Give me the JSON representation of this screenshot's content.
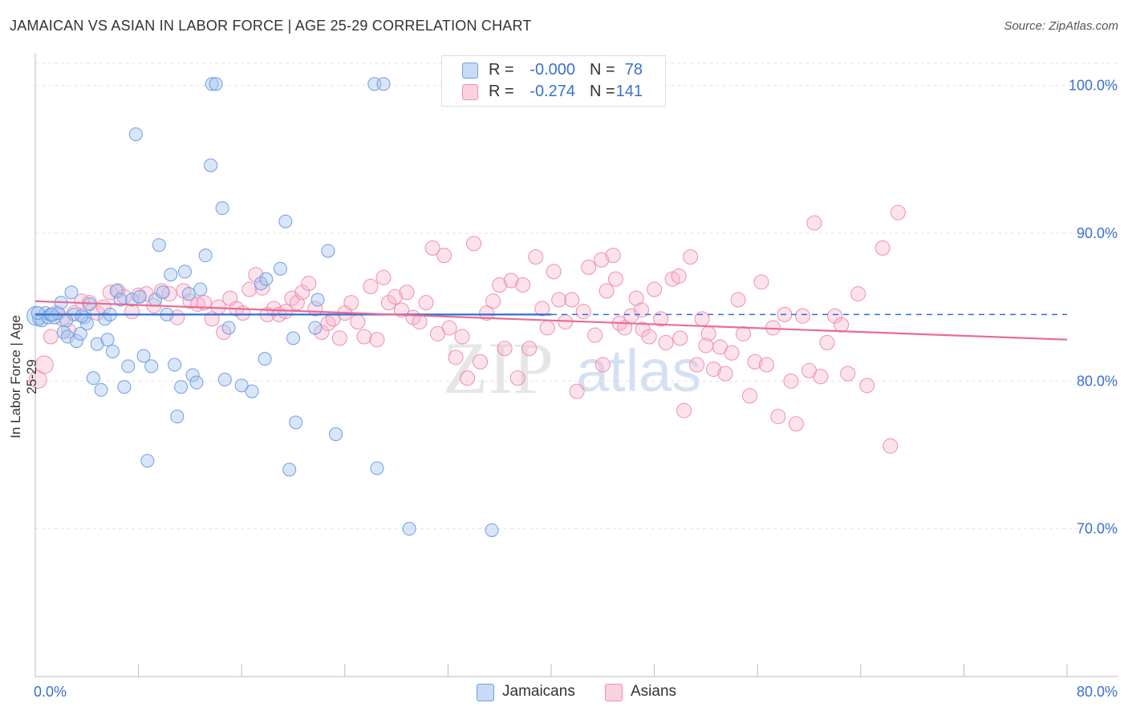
{
  "title": "JAMAICAN VS ASIAN IN LABOR FORCE | AGE 25-29 CORRELATION CHART",
  "source": "Source: ZipAtlas.com",
  "watermark": {
    "zip": "ZIP",
    "atlas": "atlas"
  },
  "colors": {
    "jamaicans": "#6e9ee6",
    "asians": "#ee8fb0",
    "jam_line": "#2f6fd0",
    "asi_line": "#e86b98",
    "accent": "#3b6fd1"
  },
  "legend": {
    "jamaicans": {
      "r_label": "R =",
      "r_value": "-0.000",
      "n_label": "N =",
      "n_value": "78"
    },
    "asians": {
      "r_label": "R =",
      "r_value": "-0.274",
      "n_label": "N =",
      "n_value": "141"
    }
  },
  "bottom_legend": {
    "jamaicans": "Jamaicans",
    "asians": "Asians"
  },
  "chart_data": {
    "type": "scatter",
    "xlabel": "",
    "ylabel": "In Labor Force | Age 25-29",
    "xlim": [
      0,
      80
    ],
    "ylim": [
      60.0,
      101.5
    ],
    "x_tick_labels": [
      "0.0%",
      "80.0%"
    ],
    "y_ticks": [
      70,
      80,
      90,
      100
    ],
    "y_tick_labels": [
      "70.0%",
      "80.0%",
      "90.0%",
      "100.0%"
    ],
    "grid": true,
    "series": [
      {
        "name": "Jamaicans",
        "trend": {
          "x": [
            0,
            40
          ],
          "y": [
            84.5,
            84.5
          ],
          "dashed_extension_to": 80
        },
        "points": [
          [
            0.1,
            84.4
          ],
          [
            0.3,
            84.2
          ],
          [
            0.5,
            84.1
          ],
          [
            0.8,
            84.6
          ],
          [
            1.0,
            84.3
          ],
          [
            1.2,
            84.5
          ],
          [
            1.5,
            84.3
          ],
          [
            1.8,
            84.6
          ],
          [
            2.0,
            85.3
          ],
          [
            2.2,
            83.3
          ],
          [
            2.5,
            83.0
          ],
          [
            2.8,
            86.0
          ],
          [
            3.0,
            84.5
          ],
          [
            3.2,
            82.7
          ],
          [
            3.5,
            83.2
          ],
          [
            3.8,
            84.3
          ],
          [
            4.0,
            83.9
          ],
          [
            4.2,
            85.2
          ],
          [
            4.5,
            80.2
          ],
          [
            4.8,
            82.5
          ],
          [
            5.1,
            79.4
          ],
          [
            5.4,
            84.2
          ],
          [
            5.6,
            82.8
          ],
          [
            5.8,
            84.5
          ],
          [
            6.0,
            82.0
          ],
          [
            6.3,
            86.1
          ],
          [
            6.6,
            85.5
          ],
          [
            6.9,
            79.6
          ],
          [
            7.2,
            81.0
          ],
          [
            7.5,
            85.5
          ],
          [
            7.8,
            96.7
          ],
          [
            8.1,
            85.7
          ],
          [
            8.4,
            81.7
          ],
          [
            8.7,
            74.6
          ],
          [
            9.0,
            81.0
          ],
          [
            9.3,
            85.5
          ],
          [
            9.6,
            89.2
          ],
          [
            9.9,
            86.0
          ],
          [
            10.2,
            84.5
          ],
          [
            10.5,
            87.2
          ],
          [
            10.8,
            81.1
          ],
          [
            11.0,
            77.6
          ],
          [
            11.3,
            79.6
          ],
          [
            11.6,
            87.4
          ],
          [
            11.9,
            85.9
          ],
          [
            12.2,
            80.4
          ],
          [
            12.5,
            79.9
          ],
          [
            12.8,
            86.2
          ],
          [
            13.2,
            88.5
          ],
          [
            13.6,
            94.6
          ],
          [
            13.7,
            100.1
          ],
          [
            14.0,
            100.1
          ],
          [
            14.5,
            91.7
          ],
          [
            14.7,
            80.1
          ],
          [
            15.0,
            83.6
          ],
          [
            16.0,
            79.7
          ],
          [
            16.8,
            79.3
          ],
          [
            17.5,
            86.6
          ],
          [
            17.8,
            81.5
          ],
          [
            17.9,
            86.9
          ],
          [
            19.0,
            87.6
          ],
          [
            19.4,
            90.8
          ],
          [
            19.7,
            74.0
          ],
          [
            20.0,
            82.9
          ],
          [
            20.2,
            77.2
          ],
          [
            21.7,
            83.6
          ],
          [
            21.9,
            85.5
          ],
          [
            22.7,
            88.8
          ],
          [
            23.3,
            76.4
          ],
          [
            26.3,
            100.1
          ],
          [
            27.0,
            100.1
          ],
          [
            26.5,
            74.1
          ],
          [
            29.0,
            70.0
          ],
          [
            35.4,
            69.9
          ],
          [
            0.2,
            84.6
          ],
          [
            1.3,
            84.5
          ],
          [
            2.4,
            84.1
          ],
          [
            3.6,
            84.4
          ]
        ]
      },
      {
        "name": "Asians",
        "trend": {
          "x": [
            0,
            80
          ],
          "y": [
            85.4,
            82.8
          ]
        },
        "points": [
          [
            0.2,
            80.1
          ],
          [
            0.7,
            81.1
          ],
          [
            1.2,
            83.0
          ],
          [
            1.6,
            84.6
          ],
          [
            2.1,
            84.2
          ],
          [
            2.6,
            83.4
          ],
          [
            3.0,
            84.6
          ],
          [
            3.6,
            85.4
          ],
          [
            4.2,
            85.3
          ],
          [
            4.8,
            84.6
          ],
          [
            5.3,
            85.0
          ],
          [
            5.8,
            86.0
          ],
          [
            6.4,
            86.1
          ],
          [
            6.9,
            85.7
          ],
          [
            7.5,
            84.7
          ],
          [
            8.0,
            85.8
          ],
          [
            8.6,
            85.9
          ],
          [
            9.2,
            85.1
          ],
          [
            9.8,
            86.1
          ],
          [
            10.4,
            85.9
          ],
          [
            11.0,
            84.3
          ],
          [
            11.5,
            86.1
          ],
          [
            12.0,
            85.4
          ],
          [
            12.6,
            85.2
          ],
          [
            13.1,
            85.3
          ],
          [
            13.7,
            84.2
          ],
          [
            14.2,
            85.0
          ],
          [
            14.6,
            83.3
          ],
          [
            15.1,
            85.6
          ],
          [
            15.6,
            84.9
          ],
          [
            16.1,
            84.6
          ],
          [
            16.6,
            86.2
          ],
          [
            17.1,
            87.2
          ],
          [
            17.6,
            86.3
          ],
          [
            18.0,
            84.5
          ],
          [
            18.5,
            84.9
          ],
          [
            18.9,
            84.5
          ],
          [
            19.4,
            84.7
          ],
          [
            19.9,
            85.6
          ],
          [
            20.3,
            85.3
          ],
          [
            20.7,
            86.0
          ],
          [
            21.2,
            86.6
          ],
          [
            21.7,
            84.9
          ],
          [
            22.2,
            83.3
          ],
          [
            22.7,
            83.9
          ],
          [
            23.1,
            84.2
          ],
          [
            23.6,
            82.9
          ],
          [
            24.0,
            84.6
          ],
          [
            24.5,
            85.3
          ],
          [
            25.0,
            84.0
          ],
          [
            25.5,
            83.0
          ],
          [
            26.0,
            86.4
          ],
          [
            26.5,
            82.8
          ],
          [
            27.0,
            87.0
          ],
          [
            27.4,
            85.3
          ],
          [
            27.9,
            85.7
          ],
          [
            28.4,
            84.8
          ],
          [
            28.8,
            86.0
          ],
          [
            29.3,
            84.3
          ],
          [
            29.8,
            84.0
          ],
          [
            30.3,
            85.3
          ],
          [
            30.8,
            89.0
          ],
          [
            31.2,
            83.2
          ],
          [
            31.7,
            88.5
          ],
          [
            32.1,
            83.6
          ],
          [
            32.6,
            81.6
          ],
          [
            33.1,
            83.0
          ],
          [
            33.5,
            80.2
          ],
          [
            34.0,
            89.3
          ],
          [
            34.5,
            81.3
          ],
          [
            35.0,
            84.6
          ],
          [
            35.5,
            85.4
          ],
          [
            36.0,
            86.5
          ],
          [
            36.4,
            82.2
          ],
          [
            36.9,
            86.8
          ],
          [
            37.4,
            80.2
          ],
          [
            37.8,
            86.5
          ],
          [
            38.3,
            82.2
          ],
          [
            38.8,
            88.4
          ],
          [
            39.3,
            84.9
          ],
          [
            39.7,
            83.6
          ],
          [
            40.2,
            87.4
          ],
          [
            40.6,
            85.5
          ],
          [
            41.1,
            84.0
          ],
          [
            41.6,
            85.5
          ],
          [
            42.0,
            79.3
          ],
          [
            42.5,
            84.7
          ],
          [
            42.9,
            87.7
          ],
          [
            43.4,
            83.1
          ],
          [
            43.9,
            88.2
          ],
          [
            44.3,
            86.1
          ],
          [
            44.8,
            88.5
          ],
          [
            45.3,
            83.9
          ],
          [
            45.7,
            83.6
          ],
          [
            46.2,
            84.4
          ],
          [
            46.6,
            85.6
          ],
          [
            47.1,
            83.5
          ],
          [
            47.6,
            83.0
          ],
          [
            48.0,
            86.2
          ],
          [
            48.5,
            84.2
          ],
          [
            48.9,
            82.6
          ],
          [
            49.4,
            86.9
          ],
          [
            49.9,
            87.1
          ],
          [
            50.3,
            78.0
          ],
          [
            50.8,
            88.4
          ],
          [
            51.3,
            81.1
          ],
          [
            51.7,
            84.2
          ],
          [
            52.2,
            83.2
          ],
          [
            52.6,
            80.8
          ],
          [
            53.1,
            82.3
          ],
          [
            53.5,
            80.5
          ],
          [
            54.0,
            81.9
          ],
          [
            54.5,
            85.5
          ],
          [
            54.9,
            83.2
          ],
          [
            55.4,
            79.0
          ],
          [
            55.8,
            81.3
          ],
          [
            56.3,
            86.7
          ],
          [
            56.7,
            81.1
          ],
          [
            57.2,
            83.6
          ],
          [
            57.6,
            77.6
          ],
          [
            58.1,
            84.5
          ],
          [
            58.6,
            80.0
          ],
          [
            59.0,
            77.1
          ],
          [
            59.5,
            84.4
          ],
          [
            60.0,
            80.7
          ],
          [
            60.4,
            90.7
          ],
          [
            60.9,
            80.3
          ],
          [
            61.4,
            82.6
          ],
          [
            62.0,
            84.4
          ],
          [
            62.5,
            83.8
          ],
          [
            63.0,
            80.5
          ],
          [
            63.8,
            85.9
          ],
          [
            64.5,
            79.7
          ],
          [
            65.7,
            89.0
          ],
          [
            66.3,
            75.6
          ],
          [
            66.9,
            91.4
          ],
          [
            52.0,
            82.4
          ],
          [
            50.0,
            82.9
          ],
          [
            47.0,
            84.8
          ],
          [
            45.0,
            86.9
          ],
          [
            44.0,
            81.1
          ]
        ]
      }
    ]
  }
}
